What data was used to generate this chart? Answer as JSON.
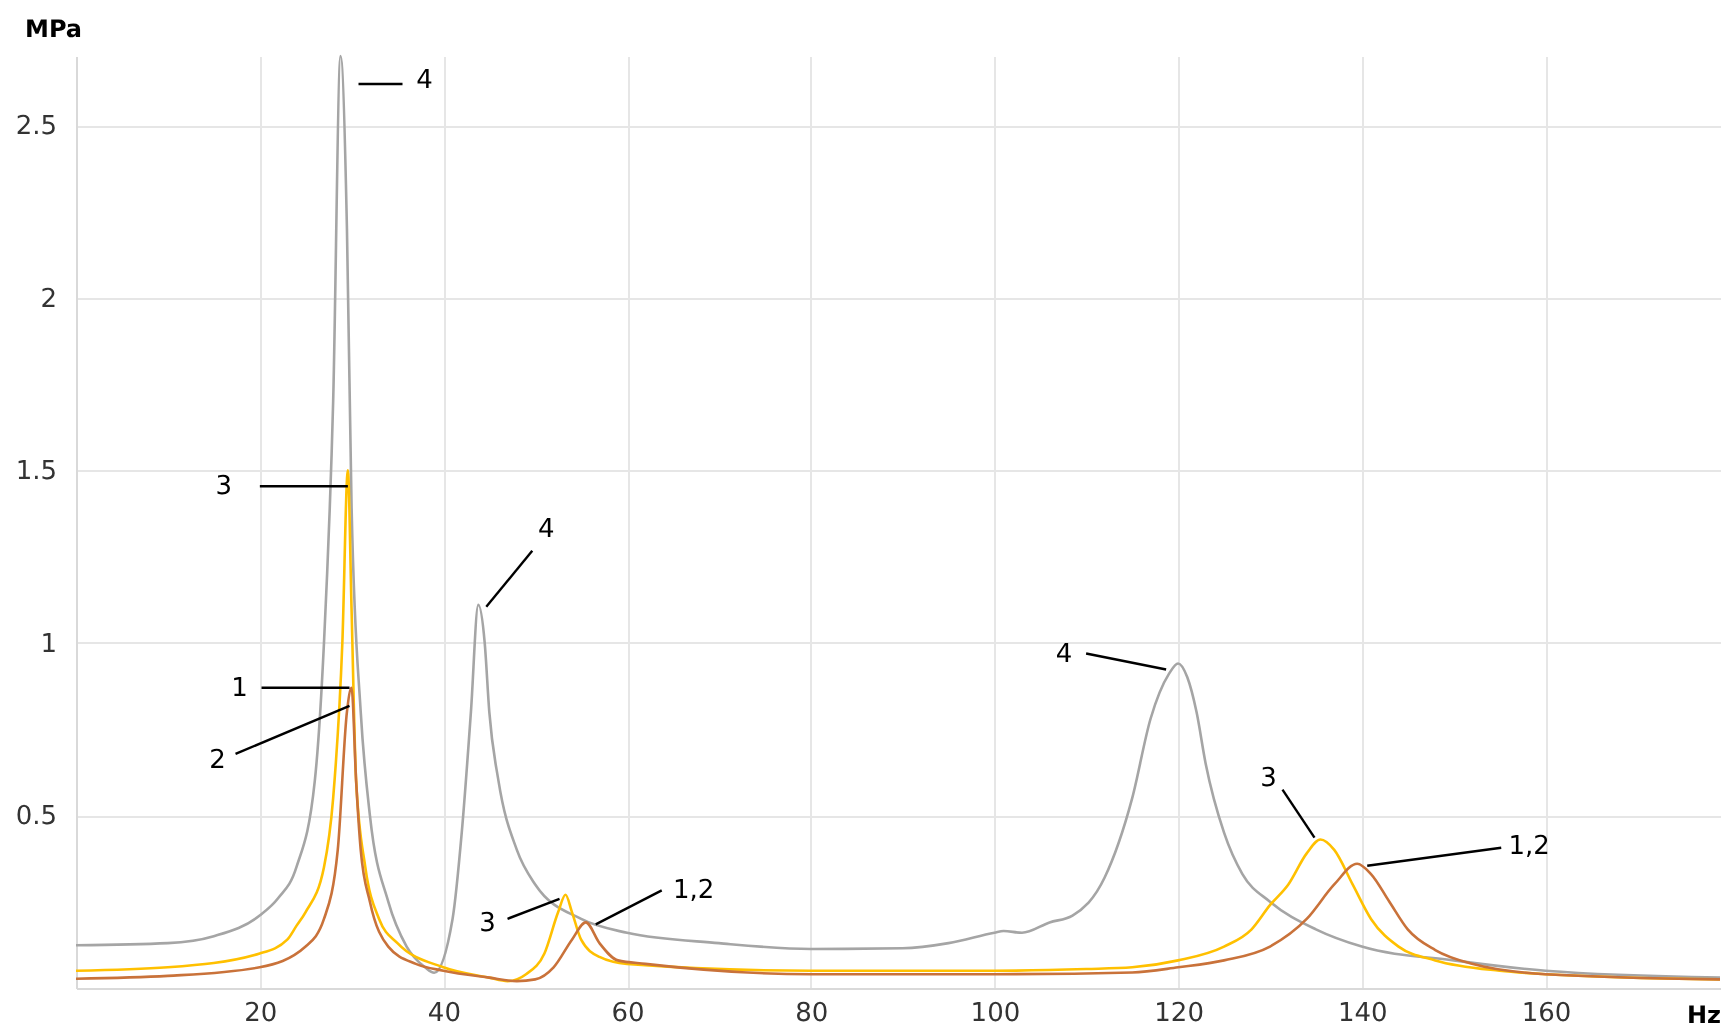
{
  "chart_data": {
    "type": "line",
    "xlabel": "Hz",
    "ylabel": "MPa",
    "xlim": [
      0,
      179
    ],
    "ylim": [
      0,
      2.7
    ],
    "xticks": [
      20,
      40,
      60,
      80,
      100,
      120,
      140,
      160
    ],
    "yticks": [
      0.5,
      1,
      1.5,
      2,
      2.5
    ],
    "grid": true,
    "marker": "none",
    "line_style": "solid",
    "series": [
      {
        "color": "#a5a5a5",
        "x": [
          0,
          10,
          15,
          20,
          22,
          24,
          26,
          27,
          28,
          28.8,
          29.5,
          30,
          31,
          32,
          34,
          36,
          38,
          39,
          41,
          42,
          43,
          43.8,
          44.5,
          45,
          46,
          48,
          50,
          55,
          60,
          70,
          80,
          90,
          95,
          100,
          101,
          103,
          106,
          108.5,
          112,
          115,
          117,
          119,
          120,
          121,
          122,
          123,
          125,
          127,
          130,
          135,
          140,
          150,
          160,
          179
        ],
        "values": [
          0.124,
          0.13,
          0.15,
          0.21,
          0.26,
          0.35,
          0.6,
          1.0,
          1.7,
          2.7,
          2.2,
          1.4,
          0.8,
          0.5,
          0.25,
          0.12,
          0.06,
          0.044,
          0.2,
          0.45,
          0.8,
          1.11,
          1.0,
          0.8,
          0.6,
          0.4,
          0.3,
          0.2,
          0.16,
          0.13,
          0.113,
          0.115,
          0.13,
          0.16,
          0.165,
          0.16,
          0.19,
          0.21,
          0.32,
          0.55,
          0.78,
          0.91,
          0.94,
          0.9,
          0.8,
          0.65,
          0.45,
          0.33,
          0.25,
          0.17,
          0.12,
          0.08,
          0.05,
          0.03
        ]
      },
      {
        "color": "#ffc000",
        "x": [
          0,
          10,
          20,
          23,
          24,
          25,
          27,
          28,
          29,
          29.6,
          30,
          30.5,
          31.5,
          33,
          35,
          40,
          45,
          47,
          49,
          51,
          52.5,
          53.3,
          54,
          55,
          57,
          60,
          80,
          100,
          110,
          115,
          120,
          125,
          128,
          130,
          132,
          134,
          135.5,
          137,
          139,
          141,
          144,
          148,
          155,
          160,
          179
        ],
        "values": [
          0.05,
          0.06,
          0.1,
          0.14,
          0.18,
          0.22,
          0.35,
          0.55,
          1.0,
          1.5,
          1.1,
          0.6,
          0.35,
          0.2,
          0.13,
          0.06,
          0.03,
          0.02,
          0.04,
          0.1,
          0.22,
          0.27,
          0.22,
          0.14,
          0.09,
          0.07,
          0.05,
          0.05,
          0.055,
          0.06,
          0.08,
          0.12,
          0.17,
          0.24,
          0.3,
          0.39,
          0.43,
          0.4,
          0.3,
          0.2,
          0.12,
          0.08,
          0.05,
          0.04,
          0.025
        ]
      },
      {
        "color": "#c9723a",
        "x": [
          0,
          10,
          20,
          25,
          27,
          28.5,
          29.5,
          30,
          30.5,
          31,
          32,
          34,
          37,
          40,
          45,
          48,
          50,
          52,
          54,
          55.5,
          57,
          59,
          62,
          80,
          100,
          115,
          120,
          125,
          130,
          134,
          137,
          139.5,
          141,
          143,
          145,
          148,
          152,
          160,
          179
        ],
        "values": [
          0.027,
          0.035,
          0.06,
          0.12,
          0.2,
          0.4,
          0.8,
          0.87,
          0.6,
          0.4,
          0.25,
          0.12,
          0.07,
          0.05,
          0.03,
          0.02,
          0.025,
          0.06,
          0.14,
          0.19,
          0.13,
          0.08,
          0.07,
          0.04,
          0.04,
          0.045,
          0.06,
          0.08,
          0.12,
          0.2,
          0.3,
          0.36,
          0.33,
          0.25,
          0.17,
          0.11,
          0.07,
          0.04,
          0.025
        ]
      }
    ],
    "annotations": [
      {
        "text": "4",
        "x": 28.8,
        "y": 2.7
      },
      {
        "text": "3",
        "x": 29.6,
        "y": 1.5
      },
      {
        "text": "1",
        "x": 30,
        "y": 0.87
      },
      {
        "text": "2",
        "x": 30,
        "y": 0.8
      },
      {
        "text": "4",
        "x": 43.8,
        "y": 1.11
      },
      {
        "text": "3",
        "x": 53.3,
        "y": 0.27
      },
      {
        "text": "1,2",
        "x": 55.5,
        "y": 0.19
      },
      {
        "text": "4",
        "x": 120,
        "y": 0.94
      },
      {
        "text": "3",
        "x": 135.5,
        "y": 0.43
      },
      {
        "text": "1,2",
        "x": 139.5,
        "y": 0.36
      }
    ]
  }
}
